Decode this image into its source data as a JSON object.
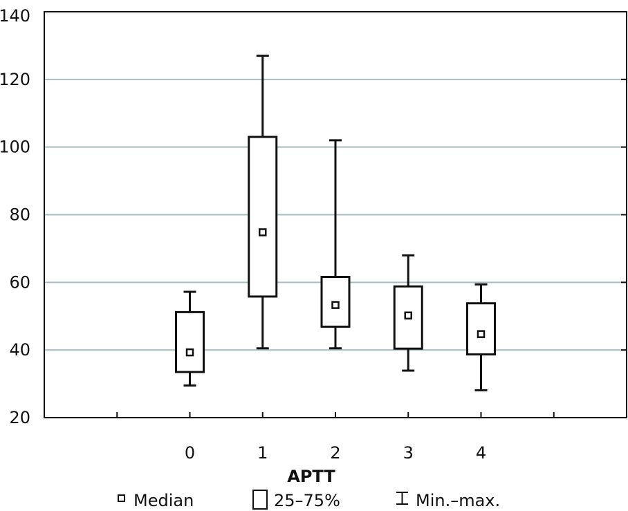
{
  "chart_data": {
    "type": "box",
    "title": "",
    "xlabel": "APTT",
    "ylabel": "",
    "ylim": [
      20,
      140
    ],
    "yticks": [
      20,
      40,
      60,
      80,
      100,
      120,
      140
    ],
    "grid": true,
    "categories": [
      "0",
      "1",
      "2",
      "3",
      "4"
    ],
    "series": [
      {
        "category": "0",
        "min": 29.5,
        "q1": 33.5,
        "median": 39.3,
        "q3": 51.2,
        "max": 57.2
      },
      {
        "category": "1",
        "min": 40.5,
        "q1": 55.8,
        "median": 74.8,
        "q3": 103.0,
        "max": 127.0
      },
      {
        "category": "2",
        "min": 40.5,
        "q1": 46.9,
        "median": 53.3,
        "q3": 61.6,
        "max": 102.0
      },
      {
        "category": "3",
        "min": 33.9,
        "q1": 40.4,
        "median": 50.2,
        "q3": 58.8,
        "max": 68.0
      },
      {
        "category": "4",
        "min": 28.1,
        "q1": 38.7,
        "median": 44.7,
        "q3": 53.8,
        "max": 59.4
      }
    ],
    "legend": {
      "placement": "bottom",
      "items": [
        {
          "symbol": "small-square",
          "label": "Median"
        },
        {
          "symbol": "box",
          "label": "25–75%"
        },
        {
          "symbol": "whisker",
          "label": "Min.–max."
        }
      ]
    },
    "colors": {
      "line": "#111111",
      "grid": "#a9bcc2"
    }
  }
}
